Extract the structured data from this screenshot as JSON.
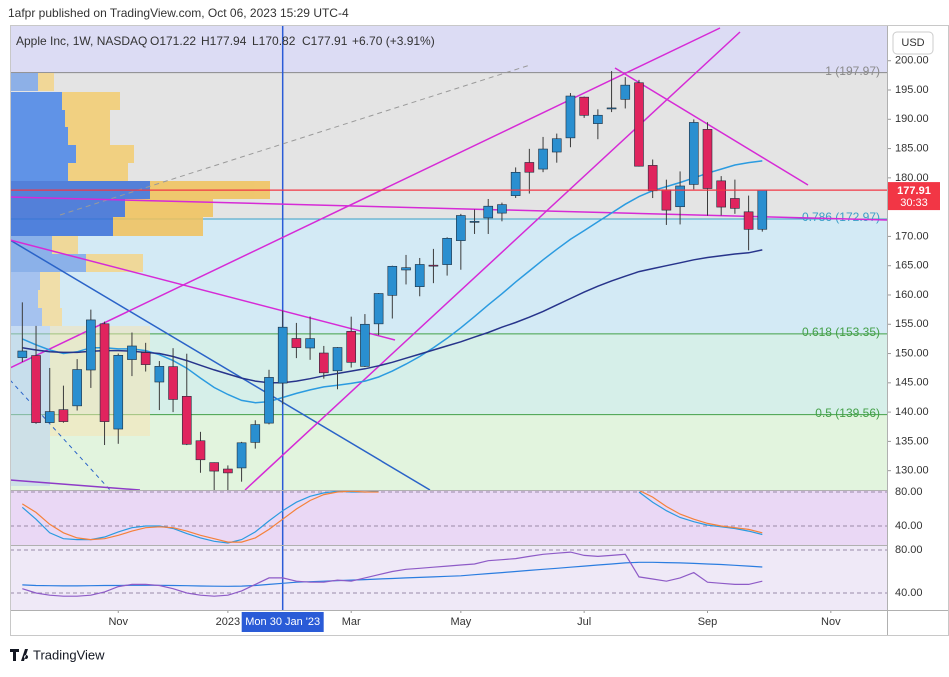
{
  "header": "1afpr published on TradingView.com, Oct 06, 2023 15:29 UTC-4",
  "brand": "TradingView",
  "currency": "USD",
  "chart_data": [
    {
      "type": "candlestick",
      "legend": {
        "name": "Apple Inc, 1W, NASDAQ",
        "open": "O171.22",
        "high": "H177.94",
        "low": "L170.82",
        "close": "C177.91",
        "change": "+6.70 (+3.91%)"
      },
      "open": [
        149.31,
        149.66,
        138.21,
        140.42,
        141.07,
        147.19,
        155.08,
        137.11,
        148.97,
        150.16,
        145.14,
        147.77,
        142.7,
        135.11,
        131.38,
        130.28,
        130.47,
        134.83,
        138.12,
        144.96,
        152.57,
        150.95,
        150.09,
        147.05,
        153.79,
        147.81,
        155.07,
        159.94,
        164.27,
        161.42,
        165.09,
        165.19,
        169.28,
        172.48,
        173.16,
        173.98,
        176.96,
        182.63,
        181.5,
        184.41,
        186.83,
        193.78,
        189.26,
        191.9,
        193.41,
        196.24,
        182.13,
        177.97,
        175.07,
        178.88,
        188.28,
        179.49,
        176.48,
        174.2,
        171.22
      ],
      "high": [
        158.74,
        154.72,
        147.54,
        144.52,
        149.05,
        157.5,
        155.45,
        150.01,
        153.59,
        151.83,
        148.72,
        150.92,
        149.97,
        136.63,
        131.41,
        130.9,
        134.92,
        138.61,
        147.23,
        157.38,
        155.23,
        156.33,
        151.3,
        151.11,
        156.3,
        156.74,
        160.34,
        165.0,
        166.84,
        166.32,
        167.87,
        169.85,
        173.85,
        174.59,
        176.39,
        175.77,
        181.78,
        184.95,
        186.99,
        187.56,
        194.48,
        193.88,
        191.7,
        198.23,
        197.2,
        196.73,
        183.13,
        179.69,
        181.1,
        189.98,
        189.5,
        180.3,
        179.7,
        176.97,
        177.94
      ],
      "low": [
        148.56,
        138.0,
        138.13,
        138.19,
        140.27,
        144.13,
        134.38,
        134.59,
        146.15,
        146.93,
        140.35,
        140.0,
        134.37,
        129.64,
        124.17,
        124.17,
        128.12,
        133.77,
        137.9,
        141.32,
        149.22,
        148.93,
        145.72,
        143.9,
        147.61,
        147.7,
        153.14,
        155.98,
        161.8,
        159.78,
        162.02,
        163.31,
        164.31,
        170.42,
        170.42,
        172.58,
        176.57,
        177.32,
        180.97,
        182.59,
        185.23,
        190.24,
        186.6,
        191.23,
        191.85,
        181.92,
        176.55,
        171.96,
        172.05,
        178.04,
        173.54,
        173.58,
        173.86,
        167.62,
        170.82
      ],
      "close": [
        150.43,
        138.2,
        140.09,
        138.38,
        147.27,
        155.74,
        138.38,
        149.7,
        151.29,
        148.11,
        147.81,
        142.16,
        134.51,
        131.86,
        129.93,
        129.62,
        134.76,
        137.87,
        145.93,
        154.5,
        151.01,
        152.55,
        146.71,
        151.03,
        148.5,
        155.0,
        160.25,
        164.9,
        164.66,
        165.21,
        165.02,
        169.68,
        173.57,
        172.57,
        175.16,
        175.43,
        180.95,
        180.96,
        184.92,
        186.68,
        193.97,
        190.68,
        190.69,
        191.94,
        195.83,
        181.99,
        177.79,
        174.49,
        178.61,
        189.46,
        178.18,
        175.01,
        174.79,
        171.21,
        177.91
      ],
      "up_color": "#2a8fd0",
      "down_color": "#e0245e",
      "wick_color": "#3b3b3b",
      "lines": [
        {
          "color": "#2b9be0",
          "values": [
            152.5,
            151.5,
            150.6,
            150.0,
            150.3,
            151.0,
            151.0,
            150.8,
            150.8,
            150.5,
            149.8,
            148.8,
            147.5,
            145.8,
            144.2,
            143.0,
            142.0,
            141.6,
            141.8,
            142.5,
            143.2,
            143.8,
            144.3,
            144.6,
            144.9,
            145.3,
            146.0,
            147.0,
            148.2,
            149.5,
            151.0,
            152.6,
            154.4,
            156.3,
            158.3,
            160.2,
            162.2,
            164.1,
            166.0,
            167.8,
            169.5,
            171.0,
            172.5,
            174.0,
            175.5,
            176.8,
            177.8,
            178.5,
            179.2,
            180.0,
            180.8,
            181.5,
            182.2,
            182.6,
            182.9
          ]
        },
        {
          "color": "#27348b",
          "values": [
            151.0,
            150.6,
            150.3,
            150.2,
            150.2,
            150.4,
            150.5,
            150.5,
            150.4,
            150.2,
            150.0,
            149.5,
            148.8,
            148.0,
            147.2,
            146.5,
            145.8,
            145.3,
            145.0,
            145.0,
            145.3,
            145.7,
            146.2,
            146.6,
            147.0,
            147.4,
            147.9,
            148.5,
            149.2,
            149.9,
            150.6,
            151.3,
            152.0,
            152.8,
            153.6,
            154.5,
            155.3,
            156.2,
            157.2,
            158.3,
            159.4,
            160.5,
            161.5,
            162.4,
            163.2,
            164.0,
            164.5,
            165.0,
            165.5,
            166.0,
            166.4,
            166.7,
            167.0,
            167.2,
            167.7
          ]
        }
      ],
      "levels": [
        {
          "value": 197.97,
          "label": "1 (197.97)",
          "color": "#8a8a8a",
          "fill": "#e4e4e4"
        },
        {
          "value": 172.97,
          "label": "0.786 (172.97)",
          "color": "#3a9fc8",
          "fill": "#d3eaf5"
        },
        {
          "value": 153.35,
          "label": "0.618 (153.35)",
          "color": "#43a047",
          "fill": "#d6efe9"
        },
        {
          "value": 139.56,
          "label": "0.5 (139.56)",
          "color": "#43a047",
          "fill": "#e2f4de"
        }
      ],
      "top_fill": "#dcdcf4",
      "last_price": 177.91,
      "countdown": "30:33",
      "last_color": "#f23645",
      "crosshair": {
        "value": 19,
        "label": "Mon 30 Jan '23"
      },
      "xlim": [
        -0.9,
        63.1
      ],
      "xticks": [
        {
          "value": 7,
          "label": "Nov"
        },
        {
          "value": 15,
          "label": "2023"
        },
        {
          "value": 24,
          "label": "Mar"
        },
        {
          "value": 32,
          "label": "May"
        },
        {
          "value": 41,
          "label": "Jul"
        },
        {
          "value": 50,
          "label": "Sep"
        },
        {
          "value": 59,
          "label": "Nov"
        }
      ],
      "ylim": [
        126.7,
        206.1
      ],
      "yticks": [
        {
          "value": 130,
          "label": "130.00"
        },
        {
          "value": 135,
          "label": "135.00"
        },
        {
          "value": 140,
          "label": "140.00"
        },
        {
          "value": 145,
          "label": "145.00"
        },
        {
          "value": 150,
          "label": "150.00"
        },
        {
          "value": 155,
          "label": "155.00"
        },
        {
          "value": 160,
          "label": "160.00"
        },
        {
          "value": 165,
          "label": "165.00"
        },
        {
          "value": 170,
          "label": "170.00"
        },
        {
          "value": 175,
          "label": "175.00"
        },
        {
          "value": 180,
          "label": "180.00"
        },
        {
          "value": 185,
          "label": "185.00"
        },
        {
          "value": 190,
          "label": "190.00"
        },
        {
          "value": 195,
          "label": "195.00"
        },
        {
          "value": 200,
          "label": "200.00"
        }
      ]
    },
    {
      "type": "line",
      "fill": "#ead8f5",
      "series": [
        {
          "color": "#2b9be0",
          "values": [
            62,
            48,
            32,
            25,
            24,
            24,
            27,
            33,
            38,
            40,
            40,
            37,
            31,
            26,
            22,
            20,
            24,
            33,
            46,
            58,
            68,
            75,
            79,
            81,
            80,
            80,
            81,
            null,
            null,
            null,
            null,
            null,
            null,
            null,
            null,
            null,
            null,
            null,
            null,
            null,
            null,
            null,
            null,
            null,
            null,
            80,
            68,
            58,
            50,
            45,
            41,
            39,
            37,
            34,
            30
          ]
        },
        {
          "color": "#f5813a",
          "values": [
            66,
            56,
            42,
            32,
            26,
            24,
            25,
            29,
            34,
            38,
            39,
            38,
            34,
            29,
            25,
            21,
            21,
            26,
            36,
            48,
            60,
            70,
            77,
            80,
            81,
            80,
            80,
            null,
            null,
            null,
            null,
            null,
            null,
            null,
            null,
            null,
            null,
            null,
            null,
            null,
            null,
            null,
            null,
            null,
            null,
            82,
            74,
            63,
            54,
            48,
            43,
            40,
            38,
            36,
            32
          ]
        }
      ],
      "ylim": [
        17.6,
        81.2
      ],
      "yticks": [
        {
          "value": 80,
          "label": "80.00"
        },
        {
          "value": 40,
          "label": "40.00"
        }
      ]
    },
    {
      "type": "line",
      "fill": "#efe9f7",
      "series": [
        {
          "color": "#2b7de0",
          "values": [
            47.5,
            47,
            46.8,
            46.6,
            46.6,
            46.8,
            47,
            47,
            47.2,
            47.2,
            47.2,
            47,
            46.8,
            46.5,
            46.3,
            46.2,
            46.4,
            47,
            48,
            49,
            50,
            50.5,
            51,
            51.5,
            52,
            52.5,
            53,
            53.5,
            54,
            54.5,
            55,
            55.5,
            56,
            57,
            58,
            59,
            60,
            61,
            62,
            63,
            64,
            65,
            66,
            67,
            68,
            68.5,
            68.5,
            68.3,
            68,
            67.5,
            67,
            66.5,
            65.8,
            65,
            64.2
          ]
        },
        {
          "color": "#8e5bc7",
          "values": [
            44,
            40,
            38,
            37,
            37,
            38,
            41,
            46,
            48,
            48,
            47,
            44,
            40,
            38,
            37,
            38,
            42,
            48,
            54,
            54,
            51,
            50,
            50,
            52,
            51,
            54,
            57,
            60,
            62,
            63,
            64,
            65,
            66,
            67,
            70,
            71,
            72,
            74,
            76,
            77,
            78,
            75,
            74,
            75,
            76,
            55,
            53,
            51,
            54,
            59,
            50,
            49,
            48,
            48,
            51
          ]
        }
      ],
      "ylim": [
        24.2,
        83.7
      ],
      "yticks": [
        {
          "value": 80,
          "label": "80.00"
        },
        {
          "value": 40,
          "label": "40.00"
        }
      ]
    }
  ]
}
